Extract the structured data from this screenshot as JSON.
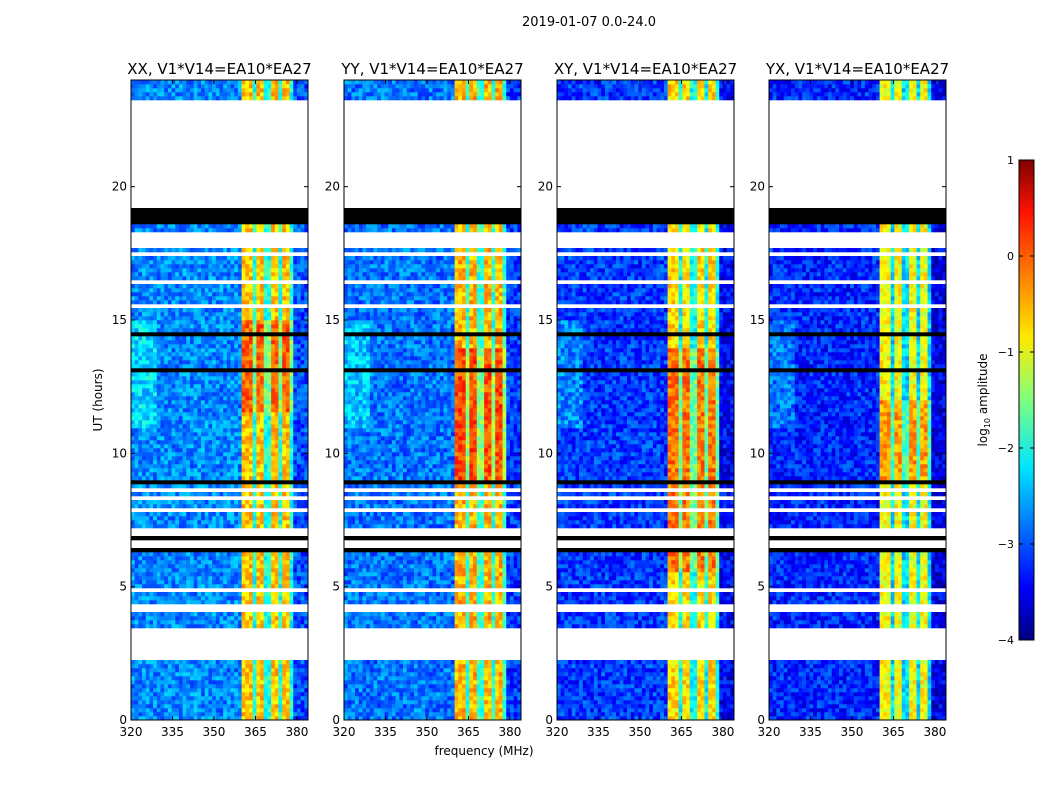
{
  "chart_data": {
    "type": "heatmap",
    "suptitle": "2019-01-07 0.0-24.0",
    "xlabel": "frequency (MHz)",
    "ylabel": "UT (hours)",
    "xlim": [
      320,
      384
    ],
    "ylim": [
      0,
      24
    ],
    "xticks": [
      320,
      335,
      350,
      365,
      380
    ],
    "yticks": [
      0,
      5,
      10,
      15,
      20
    ],
    "xtick_labels": [
      "320",
      "335",
      "350",
      "365",
      "380"
    ],
    "ytick_labels": [
      "0",
      "5",
      "10",
      "15",
      "20"
    ],
    "panels": [
      {
        "title": "XX, V1*V14=EA10*EA27",
        "base_level": -2.7,
        "band_level": -0.6,
        "strong_hours": [
          11.5,
          15
        ]
      },
      {
        "title": "YY, V1*V14=EA10*EA27",
        "base_level": -2.8,
        "band_level": -0.5,
        "strong_hours": [
          9,
          14
        ]
      },
      {
        "title": "XY, V1*V14=EA10*EA27",
        "base_level": -3.1,
        "band_level": -0.7,
        "strong_hours": [
          5.5,
          14
        ]
      },
      {
        "title": "YX, V1*V14=EA10*EA27",
        "base_level": -3.2,
        "band_level": -0.9,
        "strong_hours": [
          9,
          12
        ]
      }
    ],
    "rfi_band_MHz": [
      360,
      379
    ],
    "rfi_subband_gaps_MHz": [
      364.6,
      369.4,
      373.8,
      378.6
    ],
    "flagged_intervals_hours": [
      [
        2.3,
        3.4
      ],
      [
        19.2,
        23.3
      ]
    ],
    "zero_intervals_hours": [
      [
        18.6,
        19.2
      ]
    ],
    "colorbar": {
      "label": "log10 amplitude",
      "label_main": "log",
      "label_sub": "10",
      "label_rest": " amplitude",
      "range": [
        -4,
        1
      ],
      "ticks": [
        1,
        0,
        -1,
        -2,
        -3,
        -4
      ],
      "tick_labels": [
        "1",
        "0",
        "−1",
        "−2",
        "−3",
        "−4"
      ],
      "colormap": "jet"
    }
  }
}
